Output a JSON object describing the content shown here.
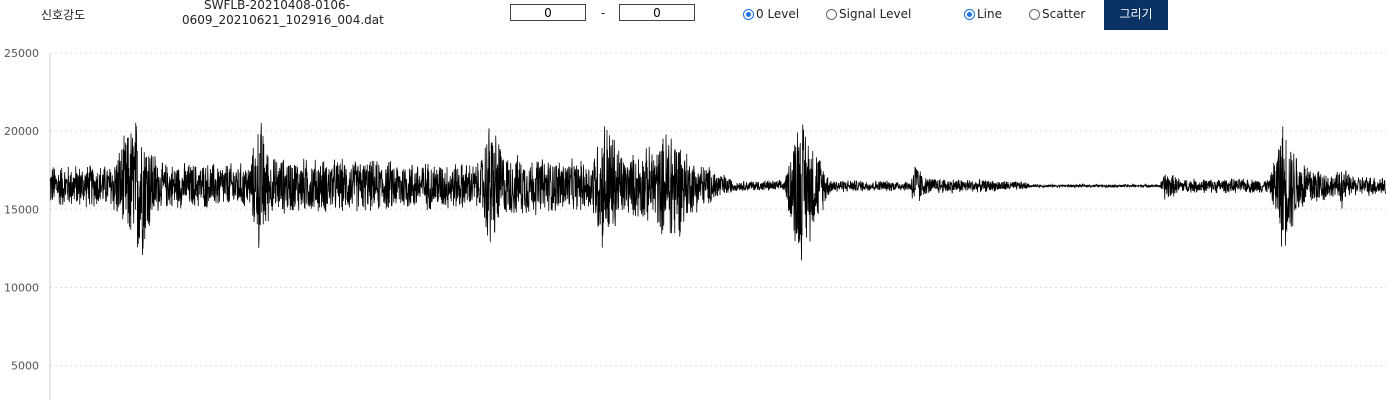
{
  "header": {
    "label": "신호강도",
    "filename": "SWFLB-20210408-0106-\n0609_20210621_102916_004.dat",
    "range_start": "0",
    "range_sep": "-",
    "range_end": "0",
    "baseline_options": [
      {
        "label": "0 Level",
        "checked": true
      },
      {
        "label": "Signal Level",
        "checked": false
      }
    ],
    "style_options": [
      {
        "label": "Line",
        "checked": true
      },
      {
        "label": "Scatter",
        "checked": false
      }
    ],
    "draw_button": "그리기",
    "accent_color": "#1a73e8",
    "button_color": "#0b3265"
  },
  "chart_data": {
    "type": "line",
    "title": "",
    "xlabel": "",
    "ylabel": "",
    "ylim": [
      2800,
      25000
    ],
    "yticks": [
      "25000",
      "20000",
      "15000",
      "10000",
      "5000"
    ],
    "ytick_values": [
      25000,
      20000,
      15000,
      10000,
      5000
    ],
    "grid": true,
    "line_color": "#000000",
    "baseline": 16500,
    "n_samples": 1336,
    "envelope": [
      {
        "x": 0,
        "amp": 1500
      },
      {
        "x": 60,
        "amp": 1500
      },
      {
        "x": 70,
        "amp": 2800
      },
      {
        "x": 90,
        "amp": 5500
      },
      {
        "x": 100,
        "amp": 3200
      },
      {
        "x": 110,
        "amp": 1600
      },
      {
        "x": 200,
        "amp": 1600
      },
      {
        "x": 210,
        "amp": 5000
      },
      {
        "x": 220,
        "amp": 2000
      },
      {
        "x": 430,
        "amp": 1600
      },
      {
        "x": 440,
        "amp": 5000
      },
      {
        "x": 455,
        "amp": 2200
      },
      {
        "x": 540,
        "amp": 1700
      },
      {
        "x": 555,
        "amp": 5000
      },
      {
        "x": 575,
        "amp": 2000
      },
      {
        "x": 610,
        "amp": 3000
      },
      {
        "x": 620,
        "amp": 4800
      },
      {
        "x": 640,
        "amp": 2000
      },
      {
        "x": 670,
        "amp": 1000
      },
      {
        "x": 685,
        "amp": 350
      },
      {
        "x": 735,
        "amp": 400
      },
      {
        "x": 748,
        "amp": 5500
      },
      {
        "x": 765,
        "amp": 3000
      },
      {
        "x": 780,
        "amp": 500
      },
      {
        "x": 805,
        "amp": 400
      },
      {
        "x": 860,
        "amp": 350
      },
      {
        "x": 865,
        "amp": 1900
      },
      {
        "x": 875,
        "amp": 600
      },
      {
        "x": 975,
        "amp": 300
      },
      {
        "x": 980,
        "amp": 100
      },
      {
        "x": 1110,
        "amp": 100
      },
      {
        "x": 1115,
        "amp": 1100
      },
      {
        "x": 1130,
        "amp": 500
      },
      {
        "x": 1220,
        "amp": 500
      },
      {
        "x": 1232,
        "amp": 4600
      },
      {
        "x": 1250,
        "amp": 2000
      },
      {
        "x": 1285,
        "amp": 700
      },
      {
        "x": 1292,
        "amp": 1600
      },
      {
        "x": 1300,
        "amp": 700
      },
      {
        "x": 1336,
        "amp": 700
      }
    ]
  }
}
